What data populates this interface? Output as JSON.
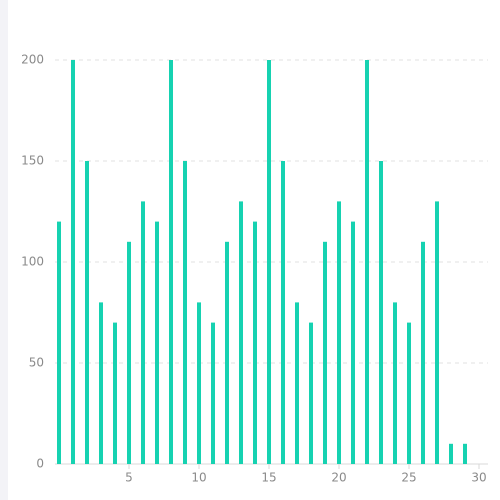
{
  "chart_data": {
    "type": "bar",
    "x": [
      0,
      1,
      2,
      3,
      4,
      5,
      6,
      7,
      8,
      9,
      10,
      11,
      12,
      13,
      14,
      15,
      16,
      17,
      18,
      19,
      20,
      21,
      22,
      23,
      24,
      25,
      26,
      27,
      28,
      29
    ],
    "values": [
      120,
      200,
      150,
      80,
      70,
      110,
      130,
      120,
      200,
      150,
      80,
      70,
      110,
      130,
      120,
      200,
      150,
      80,
      70,
      110,
      130,
      120,
      200,
      150,
      80,
      70,
      110,
      130,
      10,
      10
    ],
    "color": "#16d2b1",
    "xlim": [
      0,
      30
    ],
    "xticks": [
      5,
      10,
      15,
      20,
      25,
      30
    ],
    "ylim": [
      0,
      200
    ],
    "yticks": [
      0,
      50,
      100,
      150,
      200
    ],
    "grid": true
  }
}
